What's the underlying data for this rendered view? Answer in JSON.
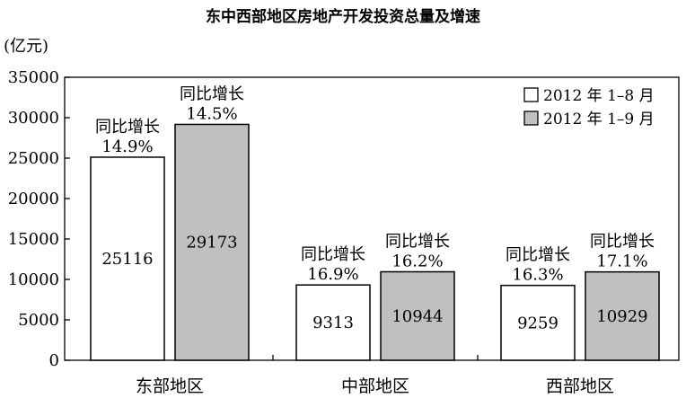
{
  "chart_data": {
    "type": "bar",
    "title": "东中西部地区房地产开发投资总量及增速",
    "ylabel": "(亿元)",
    "xlabel": "",
    "ylim": [
      0,
      35000
    ],
    "yticks": [
      0,
      5000,
      10000,
      15000,
      20000,
      25000,
      30000,
      35000
    ],
    "categories": [
      "东部地区",
      "中部地区",
      "西部地区"
    ],
    "legend_position": "top-right",
    "growth_prefix": "同比增长",
    "series": [
      {
        "name": "2012 年 1–8 月",
        "values": [
          25116,
          9313,
          9259
        ],
        "growth": [
          "14.9%",
          "16.9%",
          "16.3%"
        ],
        "color": "#ffffff"
      },
      {
        "name": "2012 年 1–9 月",
        "values": [
          29173,
          10944,
          10929
        ],
        "growth": [
          "14.5%",
          "16.2%",
          "17.1%"
        ],
        "color": "#c0c0c0"
      }
    ]
  }
}
